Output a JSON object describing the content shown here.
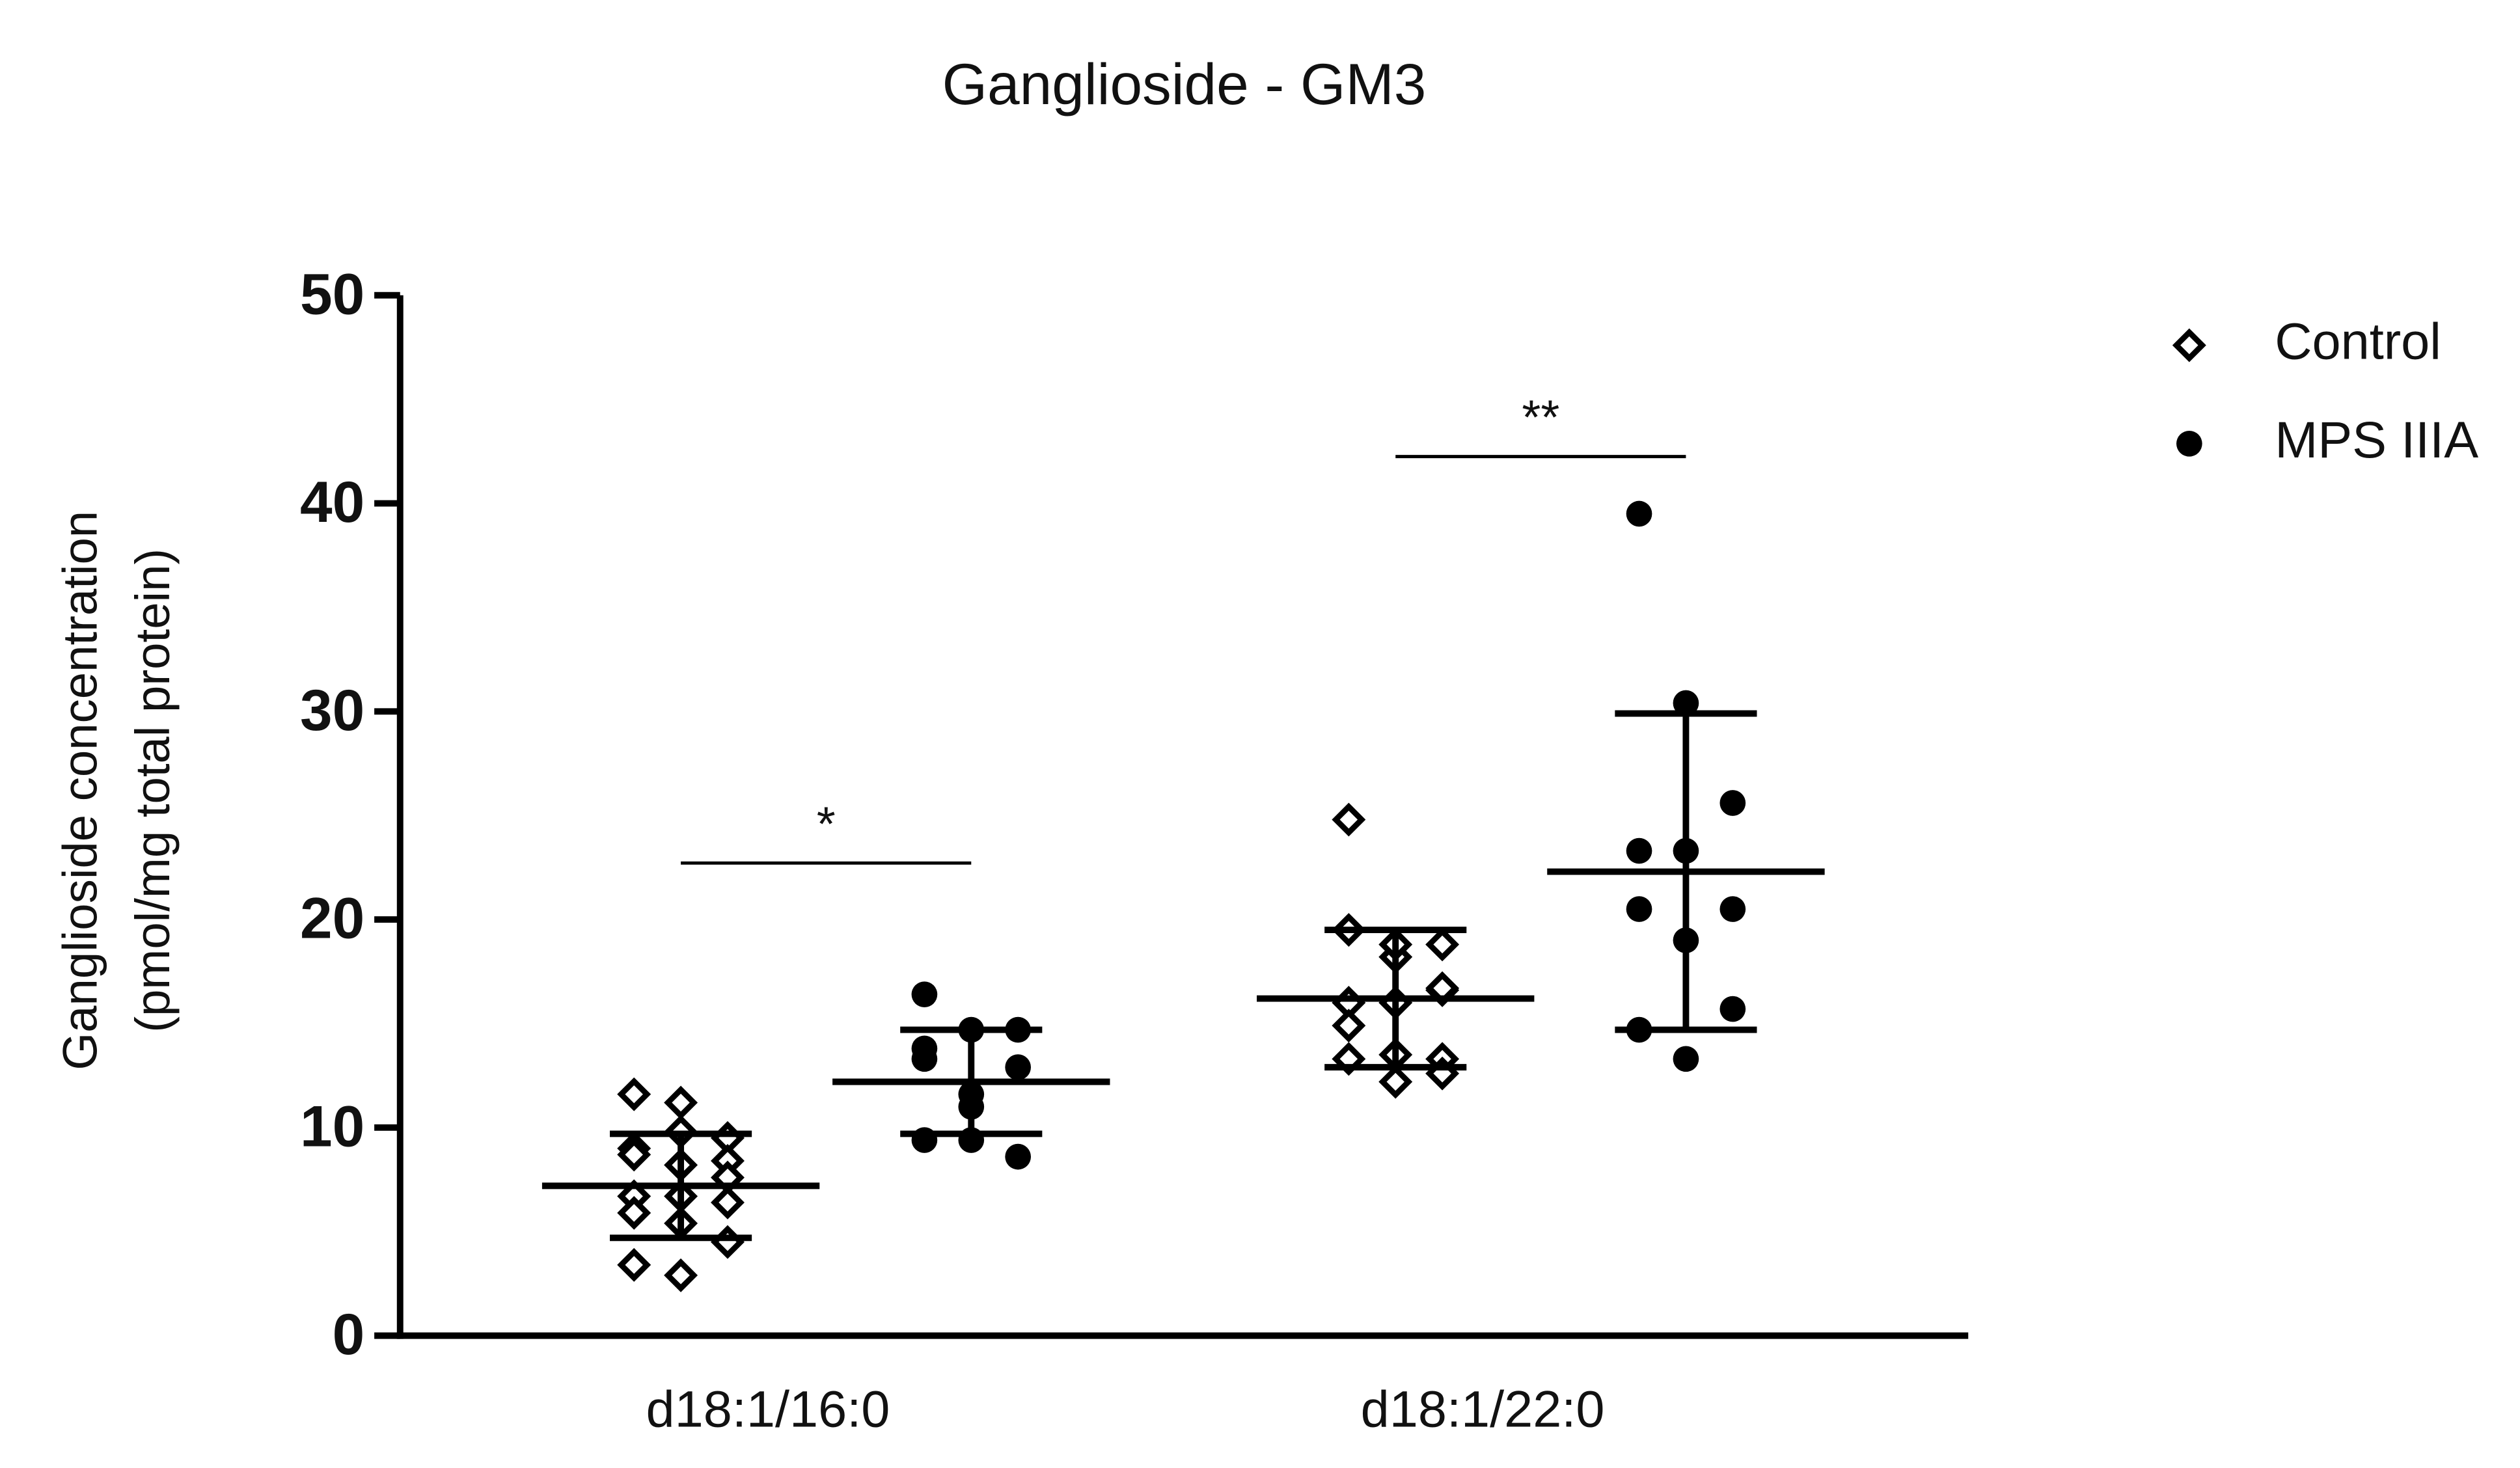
{
  "chart_data": {
    "type": "dotplot",
    "title": "Ganglioside - GM3",
    "ylabel": [
      "Ganglioside concentration",
      "(pmol/mg total protein)"
    ],
    "categories": [
      "d18:1/16:0",
      "d18:1/22:0"
    ],
    "ylim": [
      0,
      50
    ],
    "yticks": [
      0,
      10,
      20,
      30,
      40,
      50
    ],
    "series": [
      {
        "name": "Control",
        "color": "#000000",
        "marker": "diamond",
        "values": [
          [
            11.6,
            11.2,
            9.5,
            9.0,
            9.8,
            8.4,
            8.7,
            8.2,
            7.6,
            6.7,
            6.7,
            6.4,
            5.9,
            5.4,
            4.5,
            3.4,
            2.9
          ],
          [
            24.8,
            18.2,
            18.8,
            19.5,
            18.8,
            16.6,
            16.0,
            16.0,
            16.7,
            14.9,
            13.5,
            13.3,
            13.3,
            12.2,
            12.6
          ]
        ],
        "mean": [
          7.2,
          16.2
        ],
        "sd": [
          2.5,
          3.3
        ]
      },
      {
        "name": "MPS IIIA",
        "color": "#000000",
        "marker": "circle",
        "values": [
          [
            16.4,
            14.7,
            14.7,
            13.8,
            11.6,
            12.9,
            13.3,
            11.0,
            8.6,
            9.4,
            9.4
          ],
          [
            39.5,
            30.4,
            25.6,
            23.3,
            23.3,
            20.5,
            20.5,
            19.0,
            15.7,
            14.7,
            13.3
          ]
        ],
        "mean": [
          12.2,
          22.3
        ],
        "sd": [
          2.5,
          7.6
        ]
      }
    ],
    "annotations": [
      "*",
      "**"
    ],
    "legend": "top-right"
  }
}
